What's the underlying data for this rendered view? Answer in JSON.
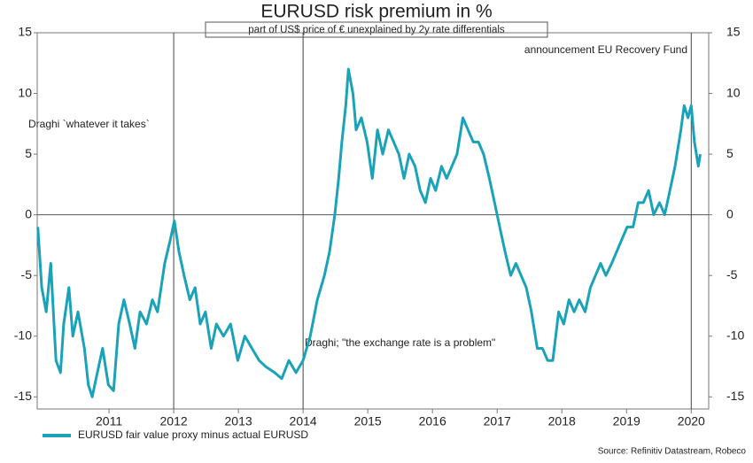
{
  "chart_data": {
    "type": "line",
    "title": "EURUSD risk premium in %",
    "subtitle": "part of US$ price of € unexplained by 2y rate differentials",
    "source": "Source: Refinitiv Datastream, Robeco",
    "xlim": [
      2009.89,
      2020.27
    ],
    "xticks": [
      2011,
      2012,
      2013,
      2014,
      2015,
      2016,
      2017,
      2018,
      2019,
      2020
    ],
    "ylim": [
      -16,
      15
    ],
    "yticks": [
      -15,
      -10,
      -5,
      0,
      5,
      10,
      15
    ],
    "right_axis": true,
    "events": [
      {
        "x": 2012.0,
        "label": "Draghi `whatever it takes`"
      },
      {
        "x": 2014.0,
        "label": "Draghi; \"the exchange rate is a problem\""
      },
      {
        "x": 2020.0,
        "label": "announcement EU Recovery Fund"
      }
    ],
    "series": [
      {
        "name": "EURUSD fair value proxy minus actual EURUSD",
        "color": "#1aa3b8",
        "x": [
          2009.9,
          2009.96,
          2010.03,
          2010.1,
          2010.18,
          2010.25,
          2010.3,
          2010.38,
          2010.44,
          2010.52,
          2010.62,
          2010.68,
          2010.74,
          2010.82,
          2010.9,
          2010.99,
          2011.07,
          2011.15,
          2011.23,
          2011.32,
          2011.4,
          2011.48,
          2011.58,
          2011.67,
          2011.75,
          2011.86,
          2011.95,
          2012.01,
          2012.08,
          2012.16,
          2012.25,
          2012.33,
          2012.41,
          2012.49,
          2012.58,
          2012.66,
          2012.77,
          2012.88,
          2012.99,
          2013.1,
          2013.21,
          2013.32,
          2013.42,
          2013.56,
          2013.67,
          2013.78,
          2013.89,
          2014.0,
          2014.11,
          2014.22,
          2014.33,
          2014.41,
          2014.49,
          2014.55,
          2014.6,
          2014.66,
          2014.7,
          2014.77,
          2014.82,
          2014.9,
          2014.99,
          2015.07,
          2015.15,
          2015.23,
          2015.32,
          2015.4,
          2015.48,
          2015.56,
          2015.64,
          2015.73,
          2015.81,
          2015.89,
          2015.97,
          2016.05,
          2016.14,
          2016.22,
          2016.3,
          2016.38,
          2016.47,
          2016.55,
          2016.63,
          2016.71,
          2016.79,
          2016.88,
          2016.96,
          2017.04,
          2017.12,
          2017.21,
          2017.29,
          2017.37,
          2017.45,
          2017.53,
          2017.62,
          2017.7,
          2017.78,
          2017.86,
          2017.95,
          2018.03,
          2018.11,
          2018.19,
          2018.27,
          2018.36,
          2018.44,
          2018.52,
          2018.6,
          2018.68,
          2018.77,
          2018.85,
          2018.93,
          2019.01,
          2019.1,
          2019.18,
          2019.26,
          2019.34,
          2019.42,
          2019.51,
          2019.59,
          2019.67,
          2019.75,
          2019.84,
          2019.89,
          2019.95,
          2020.0,
          2020.05,
          2020.11,
          2020.14
        ],
        "values": [
          -1,
          -6,
          -8,
          -4,
          -12,
          -13,
          -9,
          -6,
          -10,
          -8,
          -11,
          -14,
          -15,
          -13,
          -11,
          -14,
          -14.5,
          -9,
          -7,
          -9,
          -11,
          -8,
          -9,
          -7,
          -8,
          -4,
          -2,
          -0.5,
          -3,
          -5,
          -7,
          -6,
          -9,
          -8,
          -11,
          -9,
          -10,
          -9,
          -12,
          -10,
          -11,
          -12,
          -12.5,
          -13,
          -13.5,
          -12,
          -13,
          -12,
          -10,
          -7,
          -5,
          -3,
          0,
          3,
          6,
          9,
          12,
          10,
          7,
          8,
          6,
          3,
          7,
          5,
          7,
          6,
          5,
          3,
          5,
          4,
          2,
          1,
          3,
          2,
          4,
          3,
          4,
          5,
          8,
          7,
          6,
          6,
          5,
          3,
          1,
          -1,
          -3,
          -5,
          -4,
          -5,
          -6,
          -8,
          -11,
          -11,
          -12,
          -12,
          -8,
          -9,
          -7,
          -8,
          -7,
          -8,
          -6,
          -5,
          -4,
          -5,
          -4,
          -3,
          -2,
          -1,
          -1,
          1,
          1,
          2,
          0,
          1,
          0,
          2,
          4,
          7,
          9,
          8,
          9,
          6,
          4,
          5
        ]
      }
    ]
  }
}
